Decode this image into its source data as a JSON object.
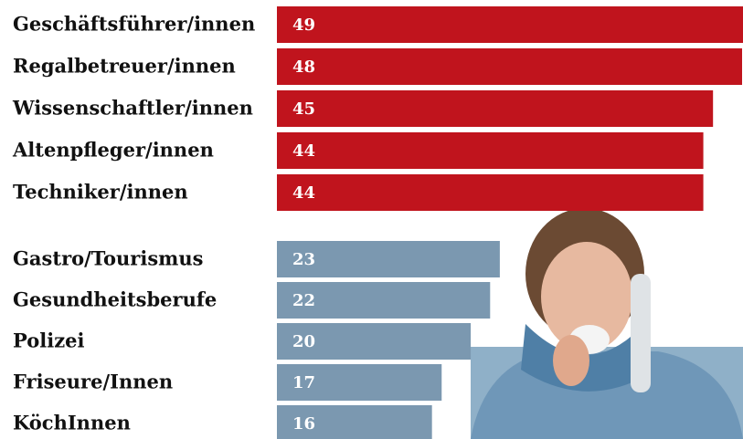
{
  "chart_data": {
    "type": "barh",
    "categories": [
      "Geschäftsführer/innen",
      "Regalbetreuer/innen",
      "Wissenschaftler/innen",
      "Altenpfleger/innen",
      "Techniker/innen",
      "Gastro/Tourismus",
      "Gesundheitsberufe",
      "Polizei",
      "Friseure/Innen",
      "KöchInnen"
    ],
    "values": [
      49,
      48,
      45,
      44,
      44,
      23,
      22,
      20,
      17,
      16
    ],
    "colors": [
      "#c0141d",
      "#c0141d",
      "#c0141d",
      "#c0141d",
      "#c0141d",
      "#7b98b0",
      "#7b98b0",
      "#7b98b0",
      "#7b98b0",
      "#7b98b0"
    ],
    "xlim": [
      0,
      48
    ]
  }
}
